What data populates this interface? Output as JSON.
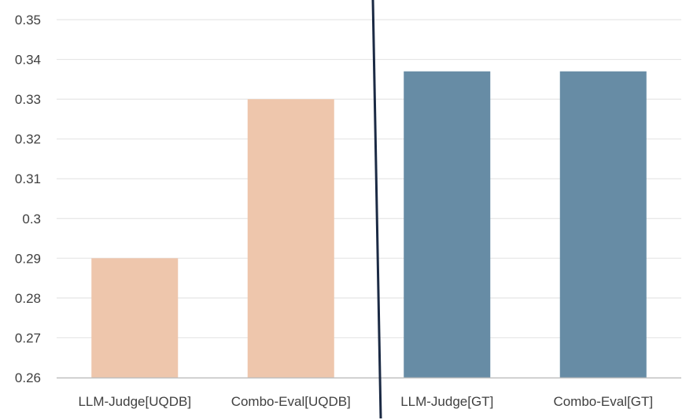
{
  "chart_data": {
    "type": "bar",
    "title": "",
    "xlabel": "",
    "ylabel": "",
    "categories": [
      "LLM-Judge[UQDB]",
      "Combo-Eval[UQDB]",
      "LLM-Judge[GT]",
      "Combo-Eval[GT]"
    ],
    "values": [
      0.29,
      0.33,
      0.337,
      0.337
    ],
    "ylim": [
      0.26,
      0.35
    ],
    "yticks": [
      "0.26",
      "0.27",
      "0.28",
      "0.29",
      "0.3",
      "0.31",
      "0.32",
      "0.33",
      "0.34",
      "0.35"
    ],
    "grid": true,
    "legend": "none",
    "colors": {
      "uqdb": "#eec6ac",
      "gt": "#678ca5",
      "divider": "#1b2a44",
      "grid": "#e6e6e6",
      "axis": "#bfbfbf"
    },
    "bar_colors": [
      "#eec6ac",
      "#eec6ac",
      "#678ca5",
      "#678ca5"
    ],
    "annotations": [
      "divider-line"
    ]
  }
}
